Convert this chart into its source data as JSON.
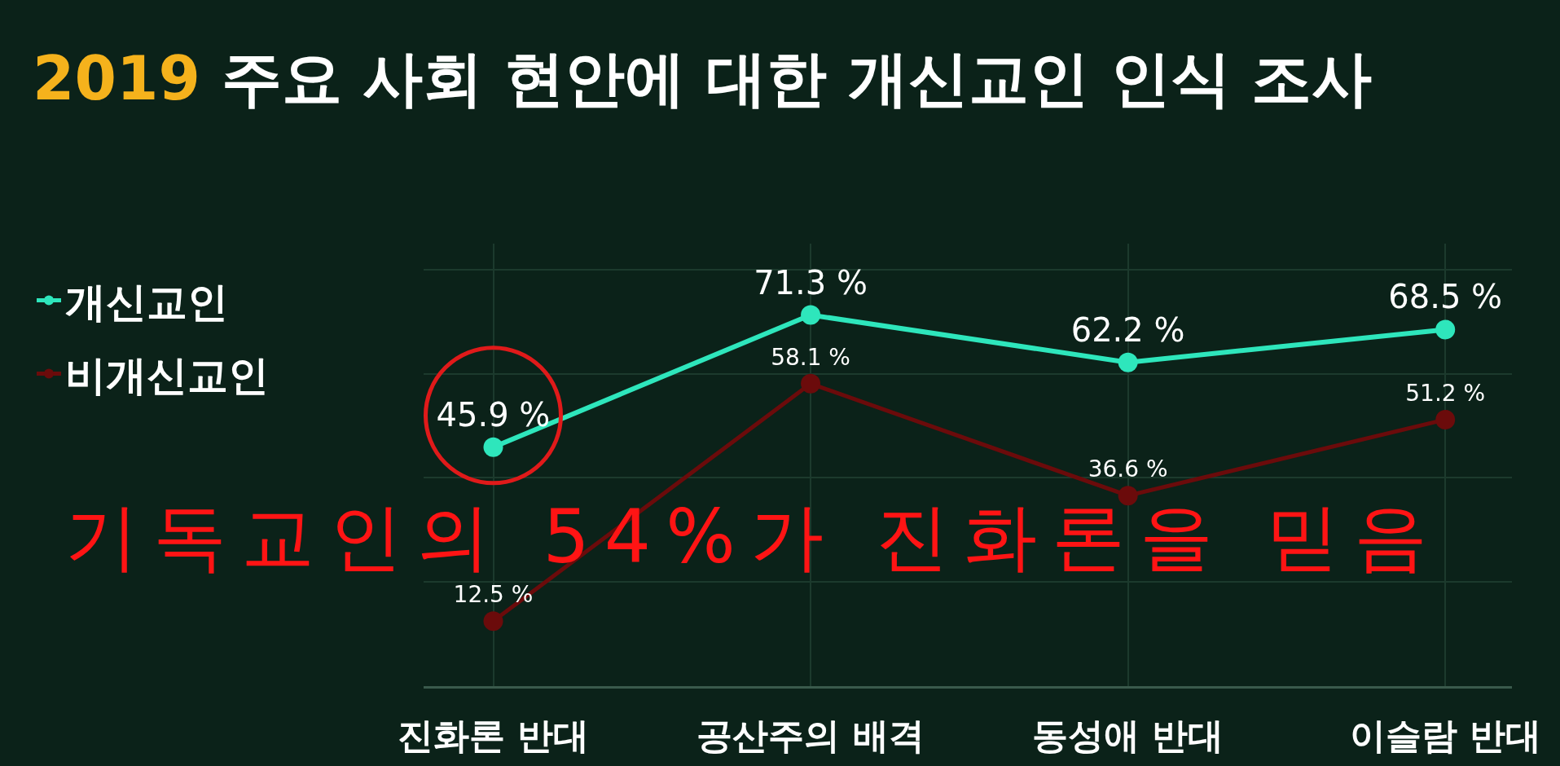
{
  "chart_data": {
    "type": "line",
    "title": "2019 주요 사회 현안에 대한 개신교인 인식 조사",
    "categories": [
      "진화론 반대",
      "공산주의 배격",
      "동성애 반대",
      "이슬람 반대"
    ],
    "series": [
      {
        "name": "개신교인",
        "color": "#2ee6bc",
        "values": [
          45.9,
          71.3,
          62.2,
          68.5
        ],
        "value_labels": [
          "45.9 %",
          "71.3 %",
          "62.2 %",
          "68.5 %"
        ]
      },
      {
        "name": "비개신교인",
        "color": "#6b0b0b",
        "values": [
          12.5,
          58.1,
          36.6,
          51.2
        ],
        "value_labels": [
          "12.5 %",
          "58.1 %",
          "36.6 %",
          "51.2 %"
        ]
      }
    ],
    "ylim": [
      0,
      85
    ],
    "yticks": [
      {
        "value": 20,
        "label": null
      },
      {
        "value": 40,
        "label": null
      },
      {
        "value": 60,
        "label": null
      },
      {
        "value": 80,
        "label": null
      }
    ],
    "tick_labels": "x",
    "grid": true,
    "legend": "top left",
    "marker": "circle",
    "line_style": "solid",
    "annotations": [
      "기독교인의 54%가 진화론을 믿음"
    ]
  }
}
